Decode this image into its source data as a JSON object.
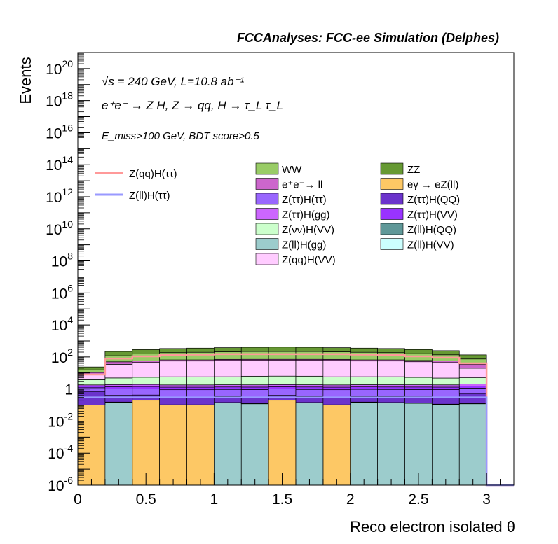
{
  "chart_data": {
    "type": "area",
    "title": "FCCAnalyses: FCC-ee Simulation (Delphes)",
    "xlabel": "Reco electron isolated θ",
    "ylabel": "Events",
    "log_y": true,
    "xlim": [
      0,
      3.2
    ],
    "ylim": [
      1e-06,
      1e+21
    ],
    "x_ticks": [
      "0",
      "0.5",
      "1",
      "1.5",
      "2",
      "2.5",
      "3"
    ],
    "y_ticks": [
      {
        "base": "10",
        "exp": "20",
        "value": 1e+20
      },
      {
        "base": "10",
        "exp": "18",
        "value": 1e+18
      },
      {
        "base": "10",
        "exp": "16",
        "value": 1e+16
      },
      {
        "base": "10",
        "exp": "14",
        "value": 100000000000000.0
      },
      {
        "base": "10",
        "exp": "12",
        "value": 1000000000000.0
      },
      {
        "base": "10",
        "exp": "10",
        "value": 10000000000.0
      },
      {
        "base": "10",
        "exp": "8",
        "value": 100000000.0
      },
      {
        "base": "10",
        "exp": "6",
        "value": 1000000.0
      },
      {
        "base": "10",
        "exp": "4",
        "value": 10000.0
      },
      {
        "base": "10",
        "exp": "2",
        "value": 100.0
      },
      {
        "base": "1",
        "exp": "",
        "value": 1
      },
      {
        "base": "10",
        "exp": "-2",
        "value": 0.01
      },
      {
        "base": "10",
        "exp": "-4",
        "value": 0.0001
      },
      {
        "base": "10",
        "exp": "-6",
        "value": 1e-06
      }
    ],
    "annotations": {
      "line1": "√s = 240 GeV, L=10.8 ab⁻¹",
      "line2": "e⁺e⁻ → Z H, Z → qq, H → τ_L τ_L",
      "line3": "E_miss>100 GeV, BDT score>0.5"
    },
    "bin_edges": [
      0,
      0.2,
      0.4,
      0.6,
      0.8,
      1.0,
      1.2,
      1.4,
      1.6,
      1.8,
      2.0,
      2.2,
      2.4,
      2.6,
      2.8,
      3.0,
      3.2
    ],
    "stack_order_bottom_to_top": [
      "eγ → eZ(ll)",
      "Z(ll)H(gg)",
      "Z(ll)H(QQ)",
      "Z(ll)H(VV)",
      "Z(ττ)H(QQ)",
      "Z(ττ)H(ττ)",
      "Z(ττ)H(VV)",
      "Z(ττ)H(gg)",
      "Z(νν)H(VV)",
      "Z(qq)H(VV)",
      "e⁺e⁻→ ll",
      "WW",
      "ZZ"
    ],
    "series": [
      {
        "name": "eγ → eZ(ll)",
        "color": "#fdc865",
        "values": [
          0.1,
          0,
          0.2,
          0.1,
          0.1,
          0,
          0,
          0.2,
          0,
          0.1,
          0,
          0,
          0,
          0,
          0,
          0
        ]
      },
      {
        "name": "Z(ll)H(gg)",
        "color": "#9ccccc",
        "values": [
          0,
          0.15,
          0,
          0,
          0,
          0.14,
          0.12,
          0,
          0.14,
          0,
          0.15,
          0.14,
          0.13,
          0.11,
          0.12,
          0
        ]
      },
      {
        "name": "Z(ll)H(QQ)",
        "color": "#5f9898",
        "values": [
          0.001,
          0.002,
          0.002,
          0.002,
          0.002,
          0.002,
          0.002,
          0.002,
          0.002,
          0.002,
          0.002,
          0.002,
          0.002,
          0.002,
          0.002,
          0
        ]
      },
      {
        "name": "Z(ll)H(VV)",
        "color": "#ccfffe",
        "values": [
          0.001,
          0.002,
          0.002,
          0.002,
          0.002,
          0.002,
          0.002,
          0.002,
          0.002,
          0.002,
          0.002,
          0.002,
          0.002,
          0.002,
          0.002,
          0
        ]
      },
      {
        "name": "Z(ττ)H(QQ)",
        "color": "#6b33cc",
        "values": [
          0.6,
          0.25,
          0.22,
          0.2,
          0.2,
          0.2,
          0.2,
          0.2,
          0.2,
          0.2,
          0.2,
          0.2,
          0.2,
          0.2,
          0.4,
          0
        ]
      },
      {
        "name": "Z(ττ)H(ττ)",
        "color": "#9966fe",
        "values": [
          0.5,
          0.6,
          0.6,
          0.6,
          0.6,
          0.6,
          0.6,
          0.6,
          0.6,
          0.6,
          0.6,
          0.6,
          0.6,
          0.6,
          0.6,
          0
        ]
      },
      {
        "name": "Z(ττ)H(VV)",
        "color": "#9933ff",
        "values": [
          0.3,
          0.4,
          0.4,
          0.4,
          0.4,
          0.4,
          0.4,
          0.4,
          0.4,
          0.4,
          0.4,
          0.4,
          0.4,
          0.4,
          0.4,
          0
        ]
      },
      {
        "name": "Z(ττ)H(gg)",
        "color": "#cc66fe",
        "values": [
          0.3,
          0.5,
          0.5,
          0.5,
          0.5,
          0.5,
          0.5,
          0.5,
          0.5,
          0.5,
          0.5,
          0.5,
          0.5,
          0.5,
          0.5,
          0
        ]
      },
      {
        "name": "Z(νν)H(VV)",
        "color": "#ccffcc",
        "values": [
          2,
          3,
          3.5,
          4,
          4,
          4,
          4.5,
          4.5,
          4.5,
          4,
          4,
          4,
          3.5,
          3,
          3,
          0
        ]
      },
      {
        "name": "Z(qq)H(VV)",
        "color": "#ffccff",
        "values": [
          4,
          30,
          40,
          50,
          50,
          55,
          55,
          55,
          55,
          55,
          50,
          50,
          45,
          40,
          15,
          0
        ]
      },
      {
        "name": "e⁺e⁻→ ll",
        "color": "#cc66cc",
        "values": [
          3,
          15,
          12,
          10,
          10,
          10,
          10,
          10,
          10,
          10,
          10,
          10,
          10,
          12,
          15,
          0
        ]
      },
      {
        "name": "WW",
        "color": "#99cc66",
        "values": [
          5,
          70,
          100,
          120,
          130,
          140,
          150,
          150,
          150,
          140,
          130,
          120,
          100,
          80,
          40,
          0
        ]
      },
      {
        "name": "ZZ",
        "color": "#669933",
        "values": [
          8,
          100,
          130,
          150,
          160,
          170,
          180,
          190,
          180,
          170,
          160,
          150,
          130,
          110,
          60,
          0
        ]
      }
    ],
    "signal_lines": [
      {
        "name": "Z(qq)H(ττ)",
        "color": "#ff9999",
        "values": [
          8,
          80,
          110,
          130,
          140,
          150,
          150,
          150,
          150,
          150,
          140,
          130,
          110,
          90,
          40,
          0
        ]
      },
      {
        "name": "Z(ll)H(ττ)",
        "color": "#9999ff",
        "values": [
          0.3,
          0.3,
          0.3,
          0.3,
          0.3,
          0.3,
          0.3,
          0.3,
          0.3,
          0.3,
          0.3,
          0.3,
          0.3,
          0.3,
          0.3,
          1e-06
        ]
      }
    ],
    "legend": {
      "lines": [
        "Z(qq)H(ττ)",
        "Z(ll)H(ττ)"
      ],
      "col1": [
        "WW",
        "e⁺e⁻→ ll",
        "Z(ττ)H(ττ)",
        "Z(ττ)H(gg)",
        "Z(νν)H(VV)",
        "Z(ll)H(gg)",
        "Z(qq)H(VV)"
      ],
      "col2": [
        "ZZ",
        "eγ → eZ(ll)",
        "Z(ττ)H(QQ)",
        "Z(ττ)H(VV)",
        "Z(ll)H(QQ)",
        "Z(ll)H(VV)"
      ]
    }
  }
}
